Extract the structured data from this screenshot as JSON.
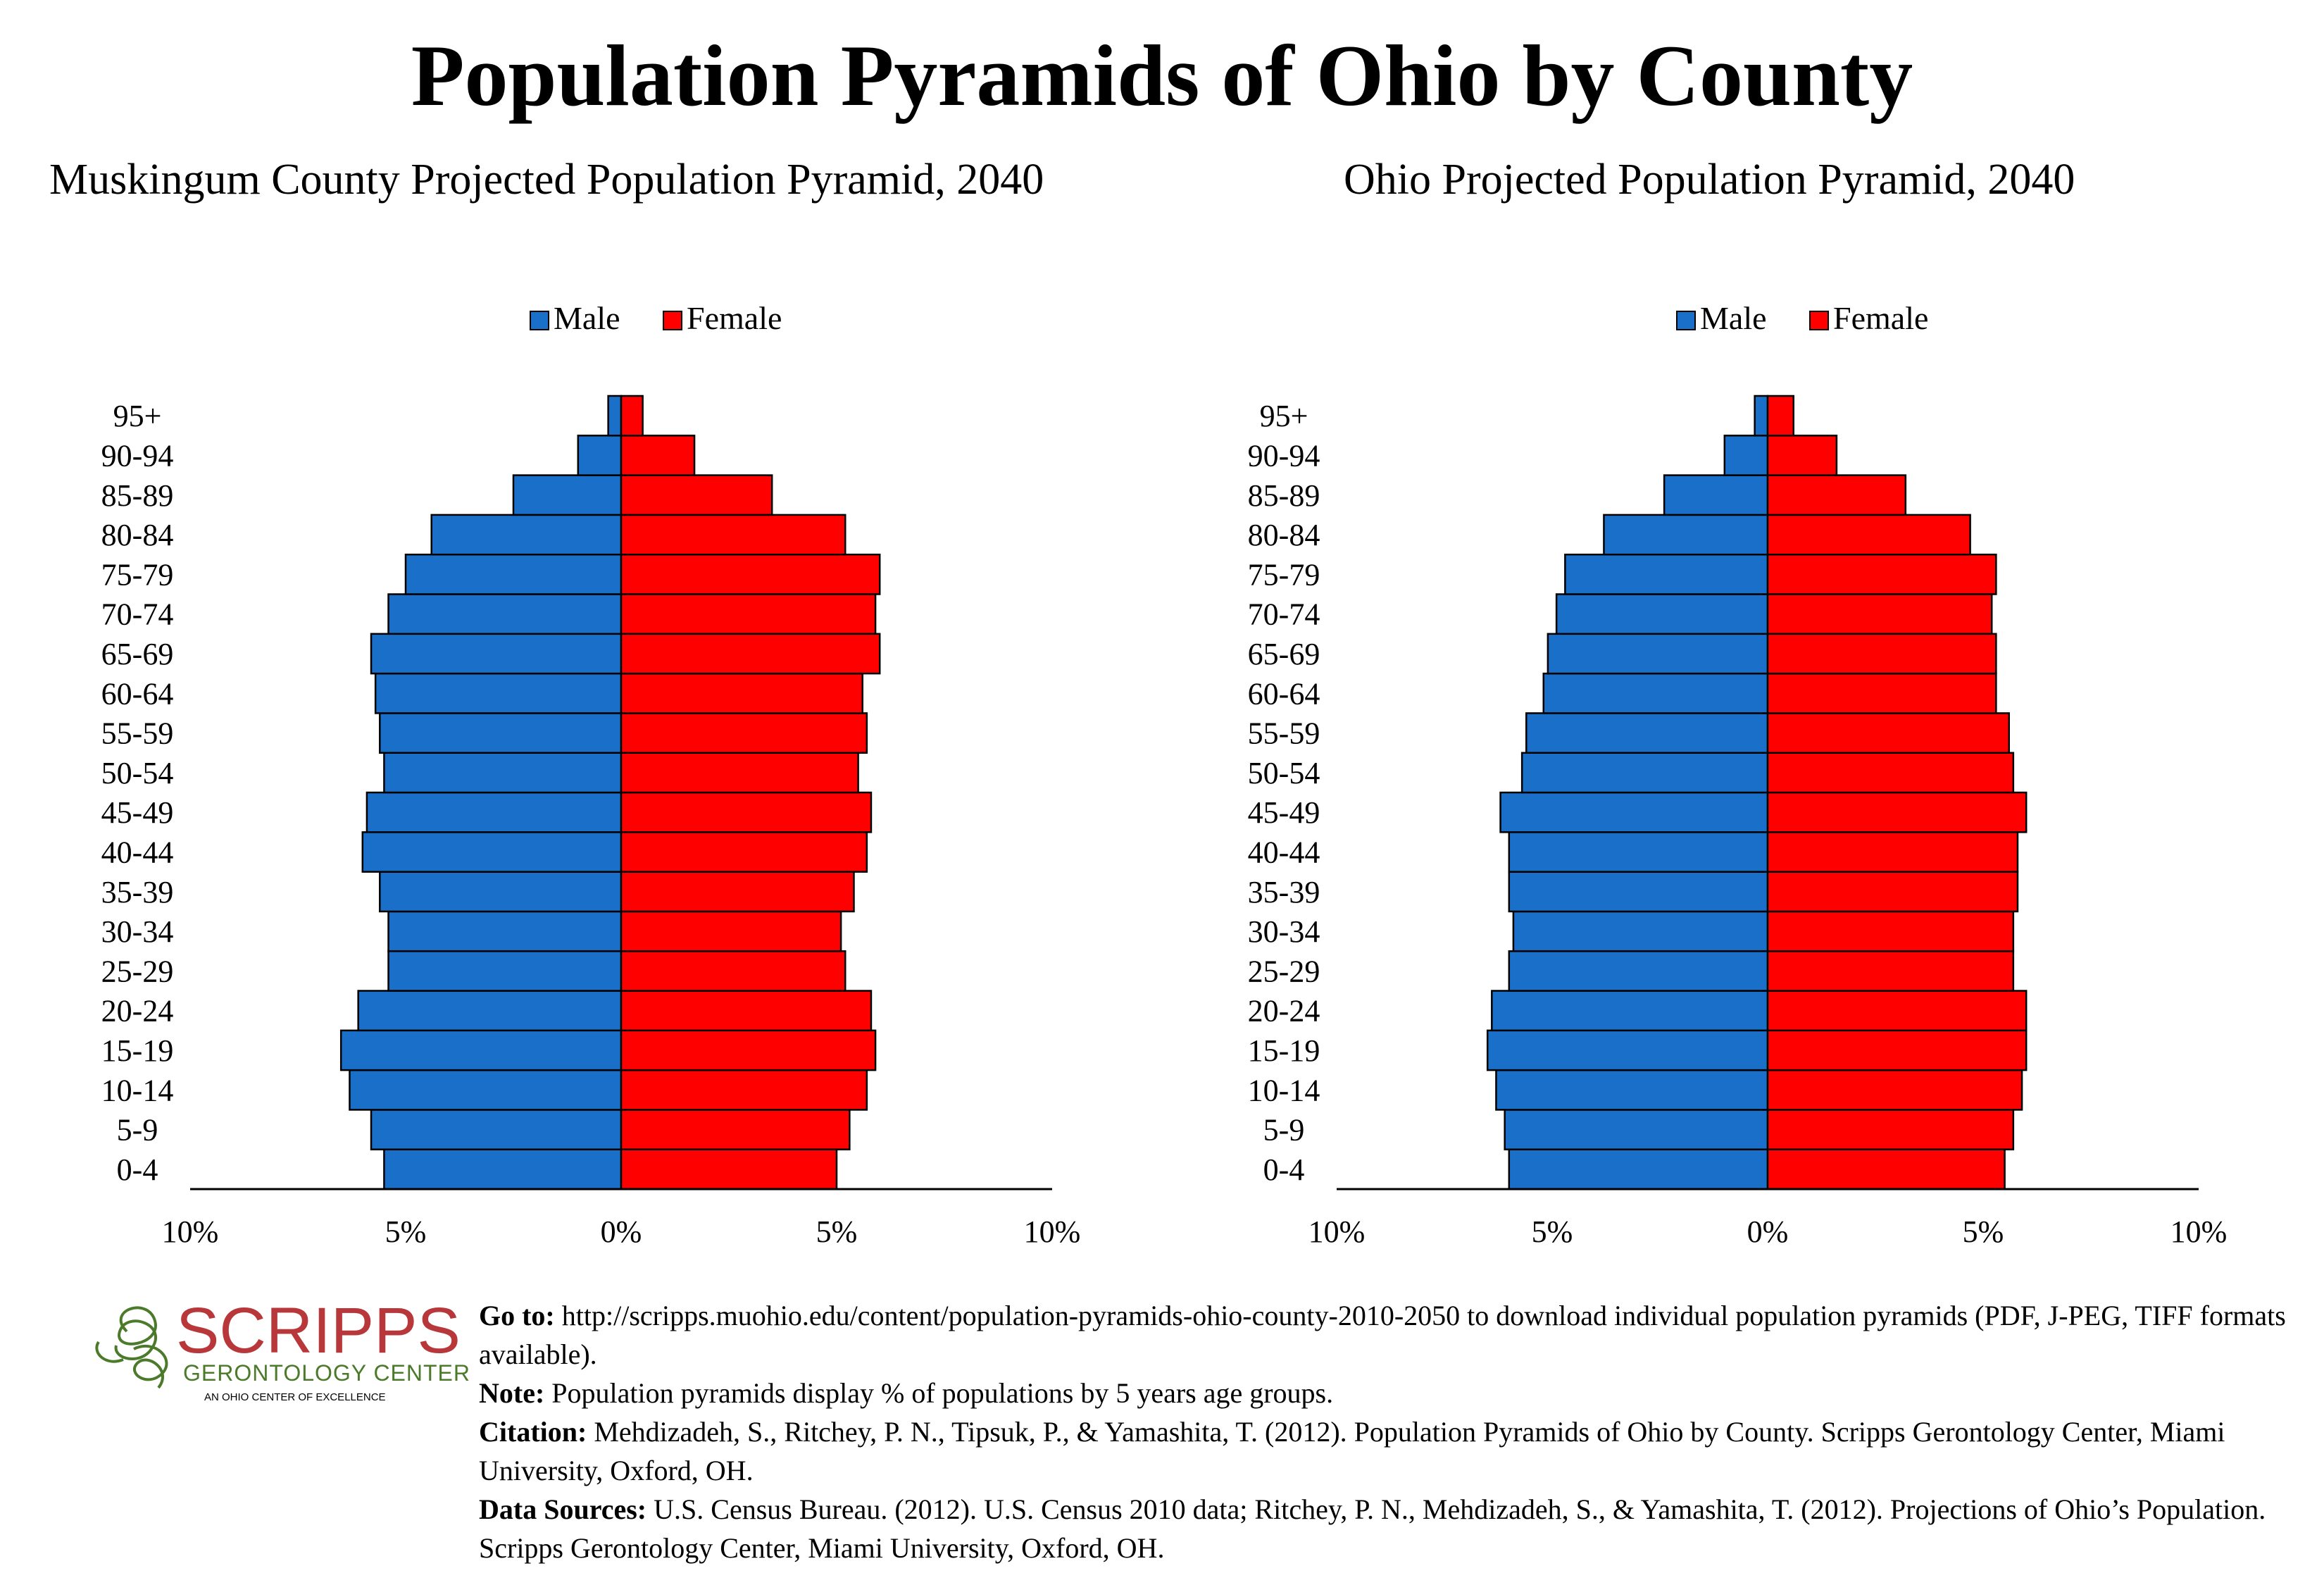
{
  "title": "Population Pyramids of Ohio by County",
  "legend": {
    "male": "Male",
    "female": "Female"
  },
  "colors": {
    "male": "#1a6fc9",
    "female": "#ff0000",
    "outline": "#000000"
  },
  "chart_data": [
    {
      "type": "bar",
      "title": "Muskingum County Projected Population Pyramid, 2040",
      "categories": [
        "0-4",
        "5-9",
        "10-14",
        "15-19",
        "20-24",
        "25-29",
        "30-34",
        "35-39",
        "40-44",
        "45-49",
        "50-54",
        "55-59",
        "60-64",
        "65-69",
        "70-74",
        "75-79",
        "80-84",
        "85-89",
        "90-94",
        "95+"
      ],
      "series": [
        {
          "name": "Male",
          "values": [
            5.5,
            5.8,
            6.3,
            6.5,
            6.1,
            5.4,
            5.4,
            5.6,
            6.0,
            5.9,
            5.5,
            5.6,
            5.7,
            5.8,
            5.4,
            5.0,
            4.4,
            2.5,
            1.0,
            0.3
          ]
        },
        {
          "name": "Female",
          "values": [
            5.0,
            5.3,
            5.7,
            5.9,
            5.8,
            5.2,
            5.1,
            5.4,
            5.7,
            5.8,
            5.5,
            5.7,
            5.6,
            6.0,
            5.9,
            6.0,
            5.2,
            3.5,
            1.7,
            0.5
          ]
        }
      ],
      "xlim": [
        -10,
        10
      ],
      "xticks": [
        "10%",
        "5%",
        "0%",
        "5%",
        "10%"
      ],
      "legend_position": "top-center"
    },
    {
      "type": "bar",
      "title": "Ohio Projected Population Pyramid, 2040",
      "categories": [
        "0-4",
        "5-9",
        "10-14",
        "15-19",
        "20-24",
        "25-29",
        "30-34",
        "35-39",
        "40-44",
        "45-49",
        "50-54",
        "55-59",
        "60-64",
        "65-69",
        "70-74",
        "75-79",
        "80-84",
        "85-89",
        "90-94",
        "95+"
      ],
      "series": [
        {
          "name": "Male",
          "values": [
            6.0,
            6.1,
            6.3,
            6.5,
            6.4,
            6.0,
            5.9,
            6.0,
            6.0,
            6.2,
            5.7,
            5.6,
            5.2,
            5.1,
            4.9,
            4.7,
            3.8,
            2.4,
            1.0,
            0.3
          ]
        },
        {
          "name": "Female",
          "values": [
            5.5,
            5.7,
            5.9,
            6.0,
            6.0,
            5.7,
            5.7,
            5.8,
            5.8,
            6.0,
            5.7,
            5.6,
            5.3,
            5.3,
            5.2,
            5.3,
            4.7,
            3.2,
            1.6,
            0.6
          ]
        }
      ],
      "xlim": [
        -10,
        10
      ],
      "xticks": [
        "10%",
        "5%",
        "0%",
        "5%",
        "10%"
      ],
      "legend_position": "top-center"
    }
  ],
  "logo": {
    "name": "SCRIPPS",
    "line2": "GERONTOLOGY CENTER",
    "line3": "AN OHIO CENTER OF EXCELLENCE",
    "color_red": "#b8373a",
    "color_green": "#4b7a2a"
  },
  "notes": {
    "goto_label": "Go to:",
    "goto_text": "http://scripps.muohio.edu/content/population-pyramids-ohio-county-2010-2050 to download individual population pyramids (PDF, J-PEG, TIFF formats available).",
    "note_label": "Note:",
    "note_text": "Population pyramids display % of populations by 5 years age groups.",
    "citation_label": "Citation:",
    "citation_text": "Mehdizadeh, S., Ritchey, P. N., Tipsuk, P., & Yamashita, T. (2012). Population Pyramids of Ohio by County. Scripps Gerontology Center, Miami University, Oxford, OH.",
    "sources_label": "Data Sources:",
    "sources_text": "U.S. Census Bureau. (2012). U.S. Census 2010 data; Ritchey, P. N., Mehdizadeh, S., & Yamashita, T. (2012). Projections of Ohio’s Population. Scripps Gerontology Center, Miami University, Oxford, OH."
  }
}
